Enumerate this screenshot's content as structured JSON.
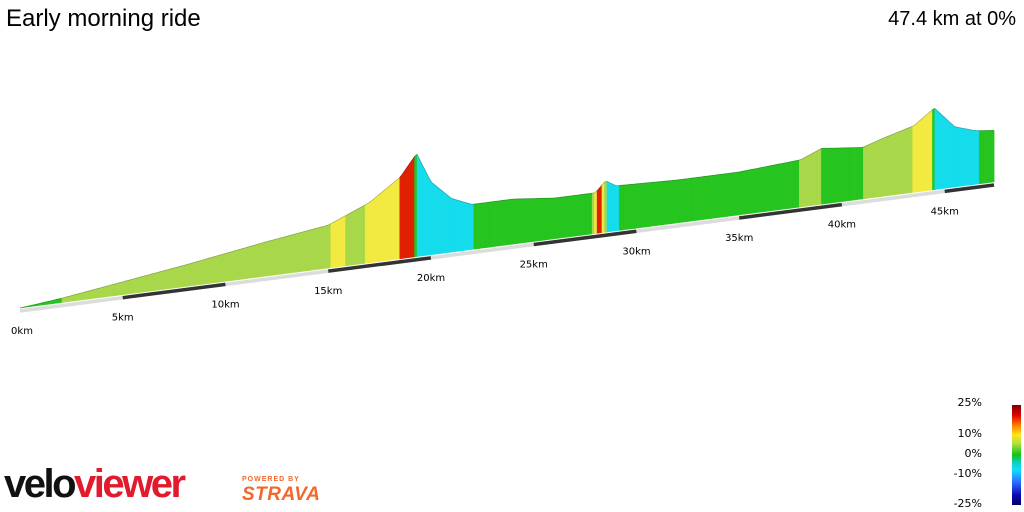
{
  "header": {
    "title": "Early morning ride",
    "summary": "47.4 km at 0%"
  },
  "chart_data": {
    "type": "area",
    "title": "Early morning ride",
    "distance_km": 47.4,
    "average_gradient": "0%",
    "x_ticks": [
      "0km",
      "5km",
      "10km",
      "15km",
      "20km",
      "25km",
      "30km",
      "35km",
      "40km",
      "45km"
    ],
    "x_tick_values": [
      0,
      5,
      10,
      15,
      20,
      25,
      30,
      35,
      40,
      45
    ],
    "x_unit": "km",
    "profile_units": "relative elevation (not printed on chart)",
    "profile": [
      {
        "km": 0,
        "elev": 0
      },
      {
        "km": 2,
        "elev": 2
      },
      {
        "km": 5,
        "elev": 6
      },
      {
        "km": 8,
        "elev": 10
      },
      {
        "km": 10,
        "elev": 13
      },
      {
        "km": 12,
        "elev": 16
      },
      {
        "km": 15,
        "elev": 20
      },
      {
        "km": 17,
        "elev": 28
      },
      {
        "km": 18.5,
        "elev": 38
      },
      {
        "km": 19.3,
        "elev": 48
      },
      {
        "km": 20,
        "elev": 34
      },
      {
        "km": 21,
        "elev": 25
      },
      {
        "km": 22,
        "elev": 21
      },
      {
        "km": 24,
        "elev": 21
      },
      {
        "km": 26,
        "elev": 19
      },
      {
        "km": 28,
        "elev": 19
      },
      {
        "km": 28.5,
        "elev": 24
      },
      {
        "km": 29,
        "elev": 21
      },
      {
        "km": 32,
        "elev": 20
      },
      {
        "km": 35,
        "elev": 20
      },
      {
        "km": 38,
        "elev": 22
      },
      {
        "km": 39,
        "elev": 26
      },
      {
        "km": 41,
        "elev": 24
      },
      {
        "km": 42,
        "elev": 27
      },
      {
        "km": 43.5,
        "elev": 31
      },
      {
        "km": 44.5,
        "elev": 38
      },
      {
        "km": 45.5,
        "elev": 28
      },
      {
        "km": 46.5,
        "elev": 25
      },
      {
        "km": 47.4,
        "elev": 24
      }
    ],
    "color_scale": {
      "labels": [
        "25%",
        "10%",
        "0%",
        "-10%",
        "-25%"
      ],
      "values": [
        25,
        10,
        0,
        -10,
        -25
      ]
    },
    "colors": {
      "climb_steep": "#e02000",
      "climb": "#f2ea40",
      "gentle": "#a8d84a",
      "flat": "#26c41e",
      "descent": "#15dcec",
      "base_light": "#dcdcdc",
      "base_dark": "#333333"
    }
  },
  "legend": {
    "labels": [
      "25%",
      "10%",
      "0%",
      "-10%",
      "-25%"
    ]
  },
  "branding": {
    "velo": "velo",
    "viewer": "viewer",
    "powered_by": "POWERED BY",
    "strava": "STRAVA"
  }
}
